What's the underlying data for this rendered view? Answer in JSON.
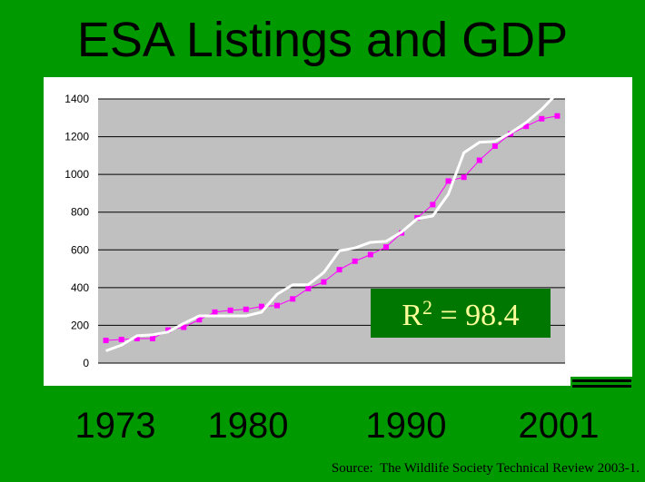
{
  "chart_data": {
    "type": "line",
    "title": "ESA Listings and GDP",
    "x": [
      1972,
      1973,
      1974,
      1975,
      1976,
      1977,
      1978,
      1979,
      1980,
      1981,
      1982,
      1983,
      1984,
      1985,
      1986,
      1987,
      1988,
      1989,
      1990,
      1991,
      1992,
      1993,
      1994,
      1995,
      1996,
      1997,
      1998,
      1999,
      2000,
      2001
    ],
    "xlim": [
      1971.5,
      2001.5
    ],
    "xtick_labels": [
      "1973",
      "1980",
      "1990",
      "2001"
    ],
    "ylim": [
      0,
      1400
    ],
    "yticks": [
      0,
      200,
      400,
      600,
      800,
      1000,
      1200,
      1400
    ],
    "grid": true,
    "series": [
      {
        "name": null,
        "color": "#ff00ff",
        "marker": "square",
        "values": [
          120,
          125,
          130,
          130,
          175,
          190,
          230,
          270,
          280,
          285,
          300,
          305,
          340,
          395,
          430,
          495,
          540,
          575,
          615,
          690,
          770,
          840,
          965,
          985,
          1075,
          1150,
          1215,
          1255,
          1295,
          1310
        ]
      },
      {
        "name": null,
        "color": "#ffffff",
        "marker": null,
        "values": [
          65,
          95,
          145,
          150,
          165,
          210,
          250,
          250,
          250,
          250,
          270,
          365,
          415,
          415,
          480,
          595,
          610,
          640,
          645,
          695,
          765,
          780,
          895,
          1115,
          1170,
          1175,
          1220,
          1275,
          1345,
          1430
        ]
      }
    ],
    "annotation": {
      "base": "R",
      "sup": "2",
      "rest": " = 98.4"
    },
    "source": "Source:  The Wildlife Society Technical Review 2003-1."
  }
}
